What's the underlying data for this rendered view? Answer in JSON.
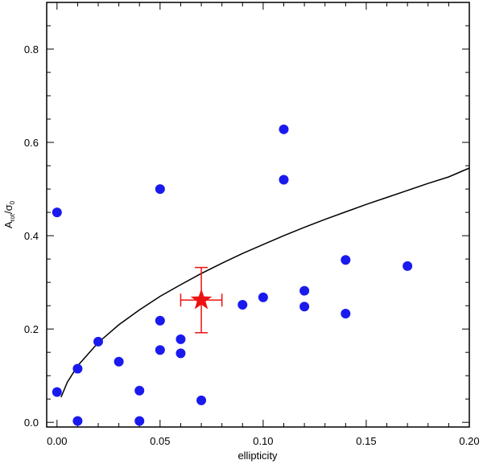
{
  "chart_data": {
    "type": "scatter",
    "xlabel": "ellipticity",
    "ylabel": {
      "main": "A",
      "sub1": "rot",
      "mid": "/σ",
      "sub2": "0"
    },
    "xlim": [
      -0.005,
      0.2
    ],
    "ylim": [
      -0.01,
      0.9
    ],
    "x_ticks": [
      0.0,
      0.05,
      0.1,
      0.15,
      0.2
    ],
    "x_tick_labels": [
      "0.00",
      "0.05",
      "0.10",
      "0.15",
      "0.20"
    ],
    "y_ticks": [
      0.0,
      0.2,
      0.4,
      0.6,
      0.8
    ],
    "y_tick_labels": [
      "0.0",
      "0.2",
      "0.4",
      "0.6",
      "0.8"
    ],
    "grid": false,
    "series": [
      {
        "marker": "circle",
        "color": "#1a1aee",
        "points": [
          [
            0.0,
            0.45
          ],
          [
            0.0,
            0.065
          ],
          [
            0.01,
            0.115
          ],
          [
            0.01,
            0.003
          ],
          [
            0.02,
            0.173
          ],
          [
            0.03,
            0.13
          ],
          [
            0.04,
            0.068
          ],
          [
            0.04,
            0.003
          ],
          [
            0.05,
            0.5
          ],
          [
            0.05,
            0.218
          ],
          [
            0.05,
            0.155
          ],
          [
            0.06,
            0.178
          ],
          [
            0.06,
            0.148
          ],
          [
            0.07,
            0.047
          ],
          [
            0.09,
            0.252
          ],
          [
            0.1,
            0.268
          ],
          [
            0.11,
            0.628
          ],
          [
            0.11,
            0.52
          ],
          [
            0.12,
            0.282
          ],
          [
            0.12,
            0.248
          ],
          [
            0.14,
            0.348
          ],
          [
            0.14,
            0.233
          ],
          [
            0.17,
            0.335
          ]
        ]
      },
      {
        "marker": "star",
        "color": "#ee1111",
        "points": [
          [
            0.07,
            0.262
          ]
        ],
        "x_error": [
          0.01
        ],
        "y_error": [
          0.07
        ]
      }
    ],
    "curve": {
      "color": "#000000",
      "points": [
        [
          0.002,
          0.054
        ],
        [
          0.005,
          0.086
        ],
        [
          0.01,
          0.121
        ],
        [
          0.02,
          0.171
        ],
        [
          0.03,
          0.209
        ],
        [
          0.04,
          0.241
        ],
        [
          0.05,
          0.27
        ],
        [
          0.06,
          0.295
        ],
        [
          0.07,
          0.319
        ],
        [
          0.08,
          0.341
        ],
        [
          0.09,
          0.362
        ],
        [
          0.1,
          0.381
        ],
        [
          0.11,
          0.4
        ],
        [
          0.12,
          0.418
        ],
        [
          0.13,
          0.435
        ],
        [
          0.14,
          0.451
        ],
        [
          0.15,
          0.467
        ],
        [
          0.16,
          0.482
        ],
        [
          0.17,
          0.497
        ],
        [
          0.18,
          0.512
        ],
        [
          0.19,
          0.526
        ],
        [
          0.2,
          0.545
        ]
      ]
    }
  }
}
